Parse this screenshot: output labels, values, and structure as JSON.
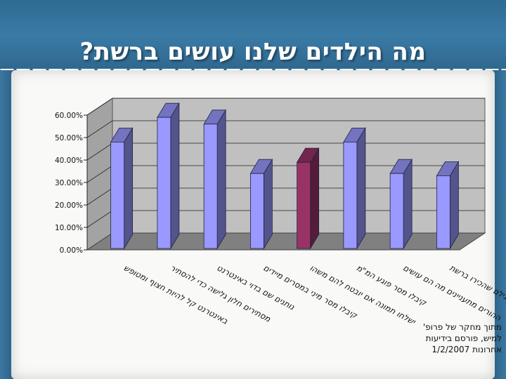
{
  "page": {
    "title": "מה הילדים שלנו עושים ברשת?",
    "credit_lines": [
      "מתוך מחקר של פרופ'",
      "למיש, פורסם בידיעות",
      "אחרונות 1/2/2007"
    ]
  },
  "chart_data": {
    "type": "bar",
    "title": "מה הילדים שלנו עושים ברשת?",
    "xlabel": "",
    "ylabel": "",
    "ylim": [
      0,
      60
    ],
    "y_ticks": [
      0,
      10,
      20,
      30,
      40,
      50,
      60
    ],
    "y_tick_labels": [
      "0.00%",
      "10.00%",
      "20.00%",
      "30.00%",
      "40.00%",
      "50.00%",
      "60.00%"
    ],
    "grid": true,
    "three_d": true,
    "categories": [
      "באינטרנט קל להיות חצוף ומטופש",
      "מסתירים חלון גלישה כדי להסתיר",
      "נותנים שם בדוי באינטרנט",
      "קיבלו מסר מיני במסרים מיידים",
      "ישלחו תמונה אם יובטח להם משהו",
      "קיבלו מסר פוגע המ\"מ",
      "ההורים מתעניינים מה הם עושים",
      "נפגשו עם זר לא בן גילם שהכירו ברשת"
    ],
    "values": [
      48,
      59,
      56,
      34,
      39,
      48,
      34,
      33
    ],
    "colors": [
      "#9999ff",
      "#9999ff",
      "#9999ff",
      "#9999ff",
      "#993366",
      "#9999ff",
      "#9999ff",
      "#9999ff"
    ],
    "wall_color": "#c0c0c0",
    "floor_color": "#808080"
  }
}
